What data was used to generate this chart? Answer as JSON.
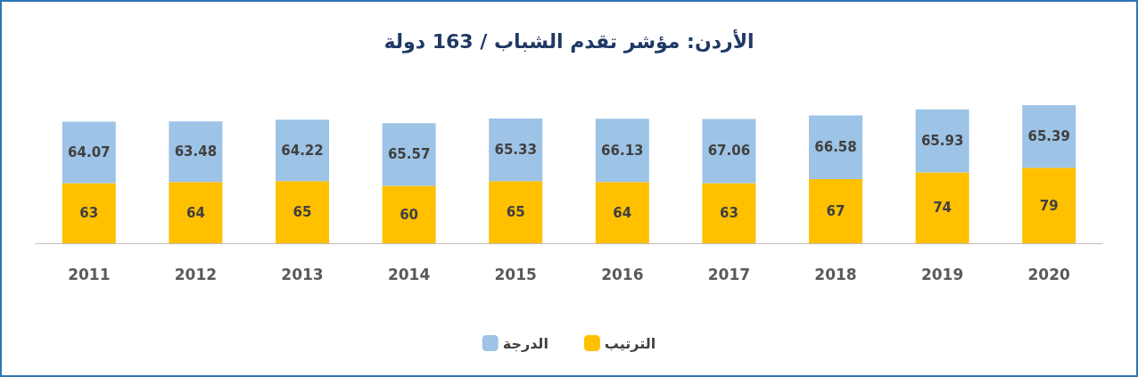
{
  "chart_data": {
    "type": "bar",
    "title": "الأردن: مؤشر تقدم الشباب / 163 دولة",
    "categories": [
      "2011",
      "2012",
      "2013",
      "2014",
      "2015",
      "2016",
      "2017",
      "2018",
      "2019",
      "2020"
    ],
    "series": [
      {
        "name": "الترتيب",
        "color": "#ffc000",
        "values": [
          63,
          64,
          65,
          60,
          65,
          64,
          63,
          67,
          74,
          79
        ]
      },
      {
        "name": "الدرجة",
        "color": "#9dc3e6",
        "values": [
          64.07,
          63.48,
          64.22,
          65.57,
          65.33,
          66.13,
          67.06,
          66.58,
          65.93,
          65.39
        ]
      }
    ],
    "stacked": true,
    "data_labels": true,
    "legend": "bottom"
  }
}
